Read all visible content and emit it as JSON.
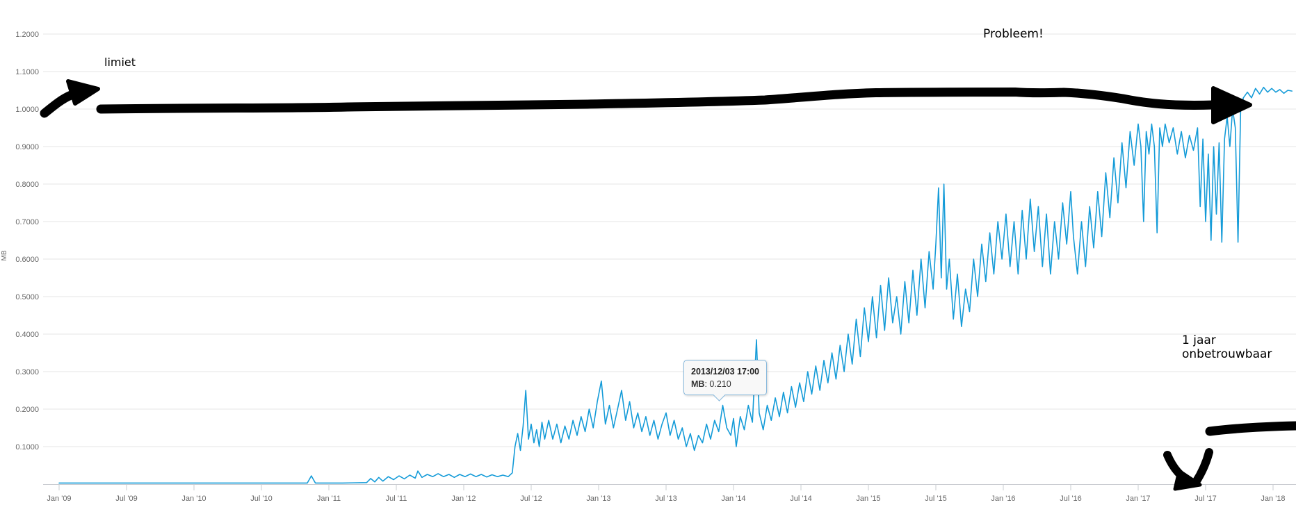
{
  "annotations": {
    "limit_label": "limiet",
    "problem_label": "Probleem!",
    "unreliable_line1": "1 jaar",
    "unreliable_line2": "onbetrouwbaar"
  },
  "tooltip": {
    "datetime": "2013/12/03 17:00",
    "series_label": "MB",
    "separator": ": ",
    "value": "0.210"
  },
  "colors": {
    "series": "#149bd8",
    "grid": "#e6e6e6",
    "axis": "#c9ccd1",
    "label": "#666666",
    "annotation": "#000000",
    "tooltip_border": "#86b8dc",
    "tooltip_bg": "#f8f8f8"
  },
  "chart_data": {
    "type": "line",
    "title": "",
    "xlabel": "",
    "ylabel": "MB",
    "series_name": "MB",
    "legend": "none",
    "grid": "horizontal",
    "ylim": [
      0,
      1.25
    ],
    "xlim_years": [
      2009.0,
      2018.17
    ],
    "yticks": [
      {
        "v": 0.1,
        "label": "0.1000"
      },
      {
        "v": 0.2,
        "label": "0.2000"
      },
      {
        "v": 0.3,
        "label": "0.3000"
      },
      {
        "v": 0.4,
        "label": "0.4000"
      },
      {
        "v": 0.5,
        "label": "0.5000"
      },
      {
        "v": 0.6,
        "label": "0.6000"
      },
      {
        "v": 0.7,
        "label": "0.7000"
      },
      {
        "v": 0.8,
        "label": "0.8000"
      },
      {
        "v": 0.9,
        "label": "0.9000"
      },
      {
        "v": 1.0,
        "label": "1.0000"
      },
      {
        "v": 1.1,
        "label": "1.1000"
      },
      {
        "v": 1.2,
        "label": "1.2000"
      }
    ],
    "xticks": [
      {
        "t": 2009.0,
        "label": "Jan '09"
      },
      {
        "t": 2009.5,
        "label": "Jul '09"
      },
      {
        "t": 2010.0,
        "label": "Jan '10"
      },
      {
        "t": 2010.5,
        "label": "Jul '10"
      },
      {
        "t": 2011.0,
        "label": "Jan '11"
      },
      {
        "t": 2011.5,
        "label": "Jul '11"
      },
      {
        "t": 2012.0,
        "label": "Jan '12"
      },
      {
        "t": 2012.5,
        "label": "Jul '12"
      },
      {
        "t": 2013.0,
        "label": "Jan '13"
      },
      {
        "t": 2013.5,
        "label": "Jul '13"
      },
      {
        "t": 2014.0,
        "label": "Jan '14"
      },
      {
        "t": 2014.5,
        "label": "Jul '14"
      },
      {
        "t": 2015.0,
        "label": "Jan '15"
      },
      {
        "t": 2015.5,
        "label": "Jul '15"
      },
      {
        "t": 2016.0,
        "label": "Jan '16"
      },
      {
        "t": 2016.5,
        "label": "Jul '16"
      },
      {
        "t": 2017.0,
        "label": "Jan '17"
      },
      {
        "t": 2017.5,
        "label": "Jul '17"
      },
      {
        "t": 2018.0,
        "label": "Jan '18"
      }
    ],
    "points": [
      [
        2009.0,
        0.003
      ],
      [
        2009.5,
        0.003
      ],
      [
        2010.0,
        0.003
      ],
      [
        2010.5,
        0.003
      ],
      [
        2010.84,
        0.003
      ],
      [
        2010.87,
        0.022
      ],
      [
        2010.9,
        0.003
      ],
      [
        2011.1,
        0.003
      ],
      [
        2011.28,
        0.004
      ],
      [
        2011.31,
        0.015
      ],
      [
        2011.34,
        0.006
      ],
      [
        2011.37,
        0.018
      ],
      [
        2011.4,
        0.008
      ],
      [
        2011.44,
        0.02
      ],
      [
        2011.48,
        0.012
      ],
      [
        2011.52,
        0.022
      ],
      [
        2011.56,
        0.014
      ],
      [
        2011.6,
        0.024
      ],
      [
        2011.64,
        0.016
      ],
      [
        2011.66,
        0.035
      ],
      [
        2011.69,
        0.018
      ],
      [
        2011.73,
        0.026
      ],
      [
        2011.77,
        0.02
      ],
      [
        2011.81,
        0.028
      ],
      [
        2011.85,
        0.02
      ],
      [
        2011.89,
        0.026
      ],
      [
        2011.93,
        0.018
      ],
      [
        2011.97,
        0.026
      ],
      [
        2012.01,
        0.02
      ],
      [
        2012.05,
        0.027
      ],
      [
        2012.09,
        0.02
      ],
      [
        2012.13,
        0.026
      ],
      [
        2012.17,
        0.019
      ],
      [
        2012.21,
        0.025
      ],
      [
        2012.25,
        0.02
      ],
      [
        2012.29,
        0.024
      ],
      [
        2012.33,
        0.02
      ],
      [
        2012.36,
        0.03
      ],
      [
        2012.38,
        0.1
      ],
      [
        2012.4,
        0.135
      ],
      [
        2012.42,
        0.09
      ],
      [
        2012.44,
        0.155
      ],
      [
        2012.46,
        0.25
      ],
      [
        2012.48,
        0.12
      ],
      [
        2012.5,
        0.16
      ],
      [
        2012.52,
        0.11
      ],
      [
        2012.54,
        0.145
      ],
      [
        2012.56,
        0.1
      ],
      [
        2012.58,
        0.165
      ],
      [
        2012.6,
        0.12
      ],
      [
        2012.63,
        0.17
      ],
      [
        2012.66,
        0.12
      ],
      [
        2012.69,
        0.16
      ],
      [
        2012.72,
        0.11
      ],
      [
        2012.75,
        0.155
      ],
      [
        2012.78,
        0.12
      ],
      [
        2012.81,
        0.17
      ],
      [
        2012.84,
        0.13
      ],
      [
        2012.87,
        0.18
      ],
      [
        2012.9,
        0.14
      ],
      [
        2012.93,
        0.2
      ],
      [
        2012.96,
        0.15
      ],
      [
        2012.99,
        0.22
      ],
      [
        2013.02,
        0.275
      ],
      [
        2013.05,
        0.16
      ],
      [
        2013.08,
        0.21
      ],
      [
        2013.11,
        0.15
      ],
      [
        2013.14,
        0.2
      ],
      [
        2013.17,
        0.25
      ],
      [
        2013.2,
        0.17
      ],
      [
        2013.23,
        0.22
      ],
      [
        2013.26,
        0.15
      ],
      [
        2013.29,
        0.19
      ],
      [
        2013.32,
        0.14
      ],
      [
        2013.35,
        0.18
      ],
      [
        2013.38,
        0.13
      ],
      [
        2013.41,
        0.17
      ],
      [
        2013.44,
        0.12
      ],
      [
        2013.47,
        0.16
      ],
      [
        2013.5,
        0.19
      ],
      [
        2013.53,
        0.13
      ],
      [
        2013.56,
        0.17
      ],
      [
        2013.59,
        0.12
      ],
      [
        2013.62,
        0.15
      ],
      [
        2013.65,
        0.1
      ],
      [
        2013.68,
        0.135
      ],
      [
        2013.71,
        0.09
      ],
      [
        2013.74,
        0.13
      ],
      [
        2013.77,
        0.11
      ],
      [
        2013.8,
        0.16
      ],
      [
        2013.83,
        0.12
      ],
      [
        2013.86,
        0.17
      ],
      [
        2013.89,
        0.14
      ],
      [
        2013.92,
        0.21
      ],
      [
        2013.95,
        0.15
      ],
      [
        2013.98,
        0.13
      ],
      [
        2014.0,
        0.175
      ],
      [
        2014.02,
        0.1
      ],
      [
        2014.05,
        0.18
      ],
      [
        2014.08,
        0.145
      ],
      [
        2014.11,
        0.21
      ],
      [
        2014.14,
        0.165
      ],
      [
        2014.17,
        0.385
      ],
      [
        2014.19,
        0.19
      ],
      [
        2014.22,
        0.145
      ],
      [
        2014.25,
        0.21
      ],
      [
        2014.28,
        0.17
      ],
      [
        2014.31,
        0.23
      ],
      [
        2014.34,
        0.18
      ],
      [
        2014.37,
        0.245
      ],
      [
        2014.4,
        0.19
      ],
      [
        2014.43,
        0.26
      ],
      [
        2014.46,
        0.205
      ],
      [
        2014.49,
        0.27
      ],
      [
        2014.52,
        0.22
      ],
      [
        2014.55,
        0.3
      ],
      [
        2014.58,
        0.24
      ],
      [
        2014.61,
        0.315
      ],
      [
        2014.64,
        0.25
      ],
      [
        2014.67,
        0.33
      ],
      [
        2014.7,
        0.27
      ],
      [
        2014.73,
        0.35
      ],
      [
        2014.76,
        0.28
      ],
      [
        2014.79,
        0.37
      ],
      [
        2014.82,
        0.3
      ],
      [
        2014.85,
        0.4
      ],
      [
        2014.88,
        0.32
      ],
      [
        2014.91,
        0.44
      ],
      [
        2014.94,
        0.34
      ],
      [
        2014.97,
        0.47
      ],
      [
        2015.0,
        0.38
      ],
      [
        2015.03,
        0.5
      ],
      [
        2015.06,
        0.39
      ],
      [
        2015.09,
        0.53
      ],
      [
        2015.12,
        0.41
      ],
      [
        2015.15,
        0.55
      ],
      [
        2015.18,
        0.43
      ],
      [
        2015.21,
        0.5
      ],
      [
        2015.24,
        0.4
      ],
      [
        2015.27,
        0.54
      ],
      [
        2015.3,
        0.43
      ],
      [
        2015.33,
        0.57
      ],
      [
        2015.36,
        0.45
      ],
      [
        2015.39,
        0.6
      ],
      [
        2015.42,
        0.47
      ],
      [
        2015.45,
        0.62
      ],
      [
        2015.48,
        0.52
      ],
      [
        2015.5,
        0.64
      ],
      [
        2015.52,
        0.79
      ],
      [
        2015.54,
        0.55
      ],
      [
        2015.56,
        0.8
      ],
      [
        2015.58,
        0.52
      ],
      [
        2015.6,
        0.6
      ],
      [
        2015.63,
        0.44
      ],
      [
        2015.66,
        0.56
      ],
      [
        2015.69,
        0.42
      ],
      [
        2015.72,
        0.52
      ],
      [
        2015.75,
        0.46
      ],
      [
        2015.78,
        0.6
      ],
      [
        2015.81,
        0.5
      ],
      [
        2015.84,
        0.64
      ],
      [
        2015.87,
        0.54
      ],
      [
        2015.9,
        0.67
      ],
      [
        2015.93,
        0.56
      ],
      [
        2015.96,
        0.7
      ],
      [
        2015.99,
        0.6
      ],
      [
        2016.02,
        0.72
      ],
      [
        2016.05,
        0.58
      ],
      [
        2016.08,
        0.7
      ],
      [
        2016.11,
        0.56
      ],
      [
        2016.14,
        0.73
      ],
      [
        2016.17,
        0.6
      ],
      [
        2016.2,
        0.76
      ],
      [
        2016.23,
        0.62
      ],
      [
        2016.26,
        0.74
      ],
      [
        2016.29,
        0.58
      ],
      [
        2016.32,
        0.72
      ],
      [
        2016.35,
        0.56
      ],
      [
        2016.38,
        0.7
      ],
      [
        2016.41,
        0.6
      ],
      [
        2016.44,
        0.75
      ],
      [
        2016.47,
        0.64
      ],
      [
        2016.5,
        0.78
      ],
      [
        2016.52,
        0.66
      ],
      [
        2016.55,
        0.56
      ],
      [
        2016.58,
        0.7
      ],
      [
        2016.61,
        0.58
      ],
      [
        2016.64,
        0.74
      ],
      [
        2016.67,
        0.63
      ],
      [
        2016.7,
        0.78
      ],
      [
        2016.73,
        0.66
      ],
      [
        2016.76,
        0.83
      ],
      [
        2016.79,
        0.71
      ],
      [
        2016.82,
        0.87
      ],
      [
        2016.85,
        0.75
      ],
      [
        2016.88,
        0.91
      ],
      [
        2016.91,
        0.79
      ],
      [
        2016.94,
        0.94
      ],
      [
        2016.97,
        0.85
      ],
      [
        2017.0,
        0.96
      ],
      [
        2017.02,
        0.9
      ],
      [
        2017.04,
        0.7
      ],
      [
        2017.06,
        0.94
      ],
      [
        2017.08,
        0.88
      ],
      [
        2017.1,
        0.96
      ],
      [
        2017.12,
        0.9
      ],
      [
        2017.14,
        0.67
      ],
      [
        2017.16,
        0.95
      ],
      [
        2017.18,
        0.9
      ],
      [
        2017.2,
        0.96
      ],
      [
        2017.23,
        0.91
      ],
      [
        2017.26,
        0.95
      ],
      [
        2017.29,
        0.88
      ],
      [
        2017.32,
        0.94
      ],
      [
        2017.35,
        0.87
      ],
      [
        2017.38,
        0.93
      ],
      [
        2017.41,
        0.89
      ],
      [
        2017.44,
        0.95
      ],
      [
        2017.46,
        0.74
      ],
      [
        2017.48,
        0.92
      ],
      [
        2017.5,
        0.7
      ],
      [
        2017.52,
        0.88
      ],
      [
        2017.54,
        0.65
      ],
      [
        2017.56,
        0.9
      ],
      [
        2017.58,
        0.72
      ],
      [
        2017.6,
        0.91
      ],
      [
        2017.62,
        0.645
      ],
      [
        2017.64,
        0.92
      ],
      [
        2017.66,
        0.98
      ],
      [
        2017.68,
        0.9
      ],
      [
        2017.7,
        1.0
      ],
      [
        2017.72,
        0.95
      ],
      [
        2017.74,
        0.645
      ],
      [
        2017.76,
        1.0
      ],
      [
        2017.78,
        1.03
      ],
      [
        2017.81,
        1.045
      ],
      [
        2017.84,
        1.03
      ],
      [
        2017.87,
        1.055
      ],
      [
        2017.9,
        1.04
      ],
      [
        2017.93,
        1.058
      ],
      [
        2017.96,
        1.045
      ],
      [
        2017.99,
        1.055
      ],
      [
        2018.02,
        1.045
      ],
      [
        2018.05,
        1.052
      ],
      [
        2018.08,
        1.042
      ],
      [
        2018.11,
        1.05
      ],
      [
        2018.14,
        1.048
      ]
    ]
  }
}
